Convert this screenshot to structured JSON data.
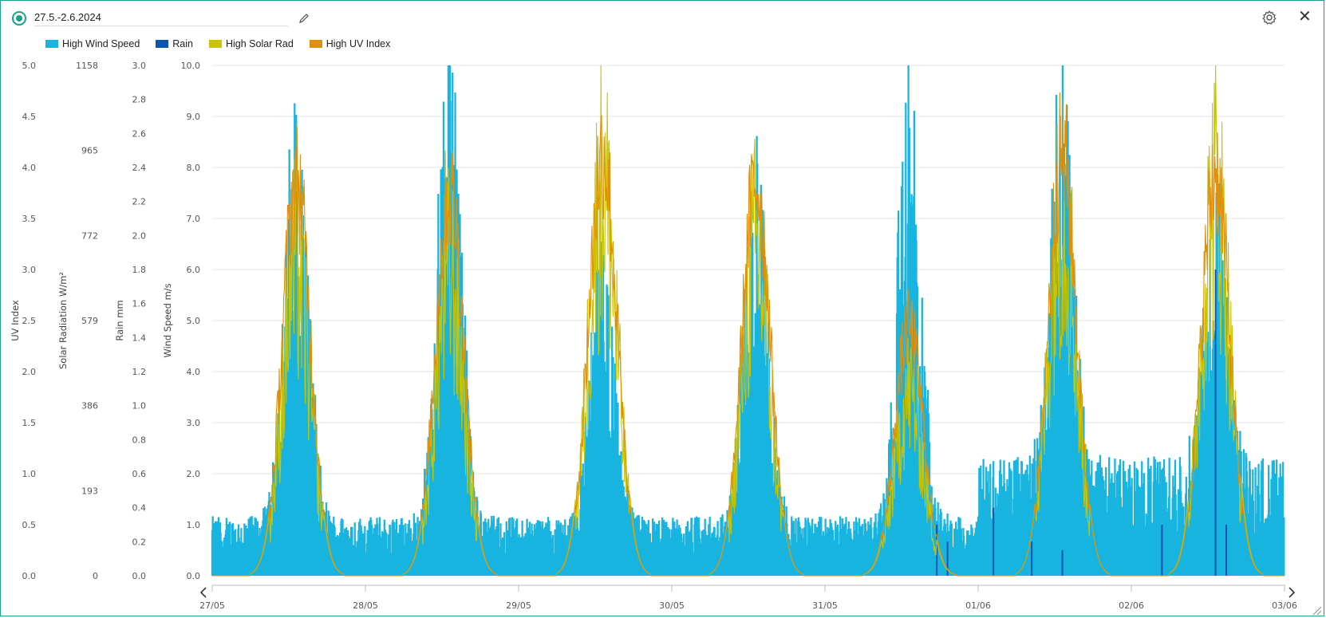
{
  "header": {
    "title": "27.5.-2.6.2024",
    "icons": {
      "radio": "radio-selected-icon",
      "edit": "pencil-icon",
      "settings": "gear-icon",
      "close": "close-icon"
    },
    "close_glyph": "✕"
  },
  "legend": [
    {
      "label": "High Wind Speed",
      "color": "#19b4e0"
    },
    {
      "label": "Rain",
      "color": "#0d55b0"
    },
    {
      "label": "High Solar Rad",
      "color": "#c8c400"
    },
    {
      "label": "High UV Index",
      "color": "#e0900a"
    }
  ],
  "chart_data": {
    "type": "line",
    "x_ticks": [
      "27/05",
      "28/05",
      "29/05",
      "30/05",
      "31/05",
      "01/06",
      "02/06",
      "03/06"
    ],
    "grid": true,
    "legend_position": "top-left",
    "axes": [
      {
        "title": "UV Index",
        "ticks": [
          "0.0",
          "0.5",
          "1.0",
          "1.5",
          "2.0",
          "2.5",
          "3.0",
          "3.5",
          "4.0",
          "4.5",
          "5.0"
        ],
        "range": [
          0,
          5
        ]
      },
      {
        "title": "Solar Radiation W/m²",
        "ticks": [
          "0",
          "193",
          "386",
          "579",
          "772",
          "965",
          "1158"
        ],
        "range": [
          0,
          1158
        ]
      },
      {
        "title": "Rain mm",
        "ticks": [
          "0.0",
          "0.2",
          "0.4",
          "0.6",
          "0.8",
          "1.0",
          "1.2",
          "1.4",
          "1.6",
          "1.8",
          "2.0",
          "2.2",
          "2.4",
          "2.6",
          "2.8",
          "3.0"
        ],
        "range": [
          0,
          3
        ]
      },
      {
        "title": "Wind Speed m/s",
        "ticks": [
          "0.0",
          "1.0",
          "2.0",
          "3.0",
          "4.0",
          "5.0",
          "6.0",
          "7.0",
          "8.0",
          "9.0",
          "10.0"
        ],
        "range": [
          0,
          10
        ]
      }
    ],
    "series": [
      {
        "name": "High Wind Speed",
        "color": "#19b4e0",
        "axis": "Wind Speed m/s",
        "daily_peak": [
          8.5,
          9.8,
          5.8,
          7.6,
          8.9,
          8.0,
          5.8
        ],
        "night_base": [
          0.9,
          0.9,
          0.9,
          0.9,
          0.9,
          1.8,
          1.8
        ]
      },
      {
        "name": "Rain",
        "color": "#0d55b0",
        "axis": "Rain mm",
        "points": [
          {
            "day": 4.73,
            "value": 0.3
          },
          {
            "day": 4.8,
            "value": 0.2
          },
          {
            "day": 5.1,
            "value": 0.4
          },
          {
            "day": 5.35,
            "value": 0.2
          },
          {
            "day": 5.55,
            "value": 0.15
          },
          {
            "day": 6.2,
            "value": 0.3
          },
          {
            "day": 6.55,
            "value": 1.8
          },
          {
            "day": 6.62,
            "value": 0.3
          }
        ]
      },
      {
        "name": "High Solar Rad",
        "color": "#c8c400",
        "axis": "Solar Radiation W/m²",
        "daily_peak": [
          915,
          900,
          1158,
          965,
          545,
          1080,
          1150
        ]
      },
      {
        "name": "High UV Index",
        "color": "#e0900a",
        "axis": "UV Index",
        "daily_peak": [
          4.3,
          4.2,
          4.6,
          4.3,
          2.7,
          4.6,
          4.4
        ]
      }
    ]
  }
}
